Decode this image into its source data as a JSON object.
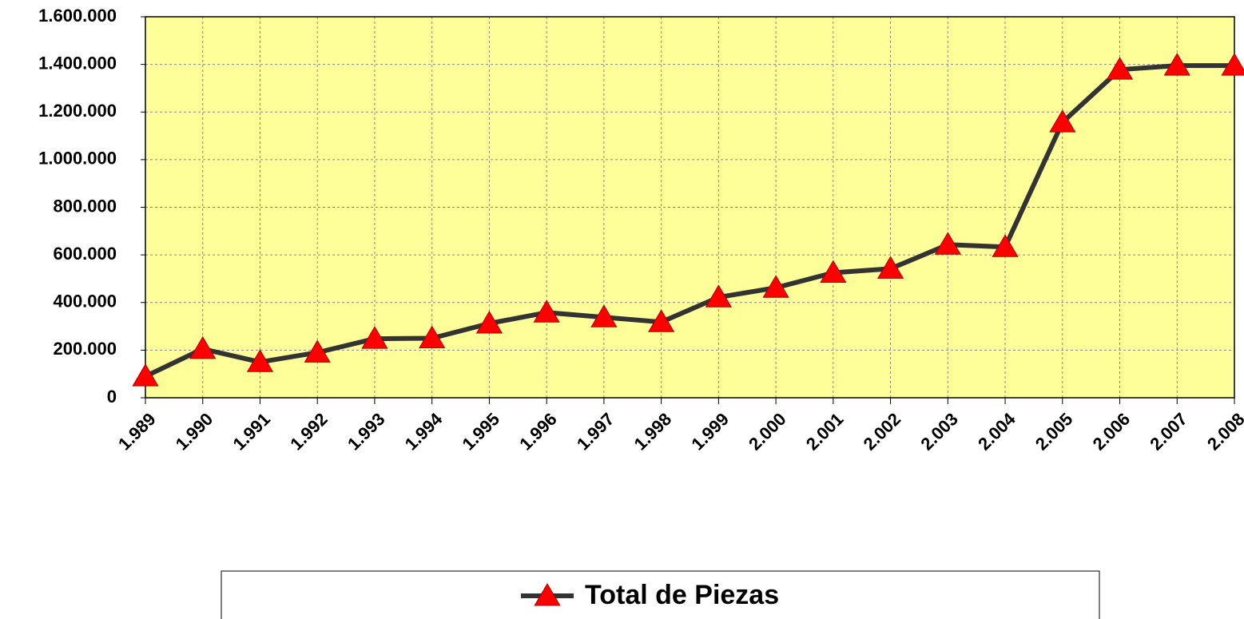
{
  "chart_data": {
    "type": "line",
    "categories": [
      "1.989",
      "1.990",
      "1.991",
      "1.992",
      "1.993",
      "1.994",
      "1.995",
      "1.996",
      "1.997",
      "1.998",
      "1.999",
      "2.000",
      "2.001",
      "2.002",
      "2.003",
      "2.004",
      "2.005",
      "2.006",
      "2.007",
      "2.008"
    ],
    "series": [
      {
        "name": "Total de Piezas",
        "color": "#333333",
        "marker_color": "#ff0000",
        "values": [
          90000,
          205000,
          150000,
          190000,
          248000,
          250000,
          312000,
          358000,
          338000,
          318000,
          422000,
          462000,
          525000,
          542000,
          643000,
          633000,
          1157000,
          1378000,
          1395000,
          1395000
        ]
      }
    ],
    "ylim": [
      0,
      1600000
    ],
    "yticks": [
      0,
      {
        "value": 200000,
        "label": "200.000"
      },
      {
        "value": 400000,
        "label": "400.000"
      },
      {
        "value": 600000,
        "label": "600.000"
      },
      {
        "value": 800000,
        "label": "800.000"
      },
      {
        "value": 1000000,
        "label": "1.000.000"
      },
      {
        "value": 1200000,
        "label": "1.200.000"
      },
      {
        "value": 1400000,
        "label": "1.400.000"
      },
      {
        "value": 1600000,
        "label": "1.600.000"
      }
    ],
    "grid": true,
    "plot_background": "#ffff99",
    "legend": "bottom"
  }
}
